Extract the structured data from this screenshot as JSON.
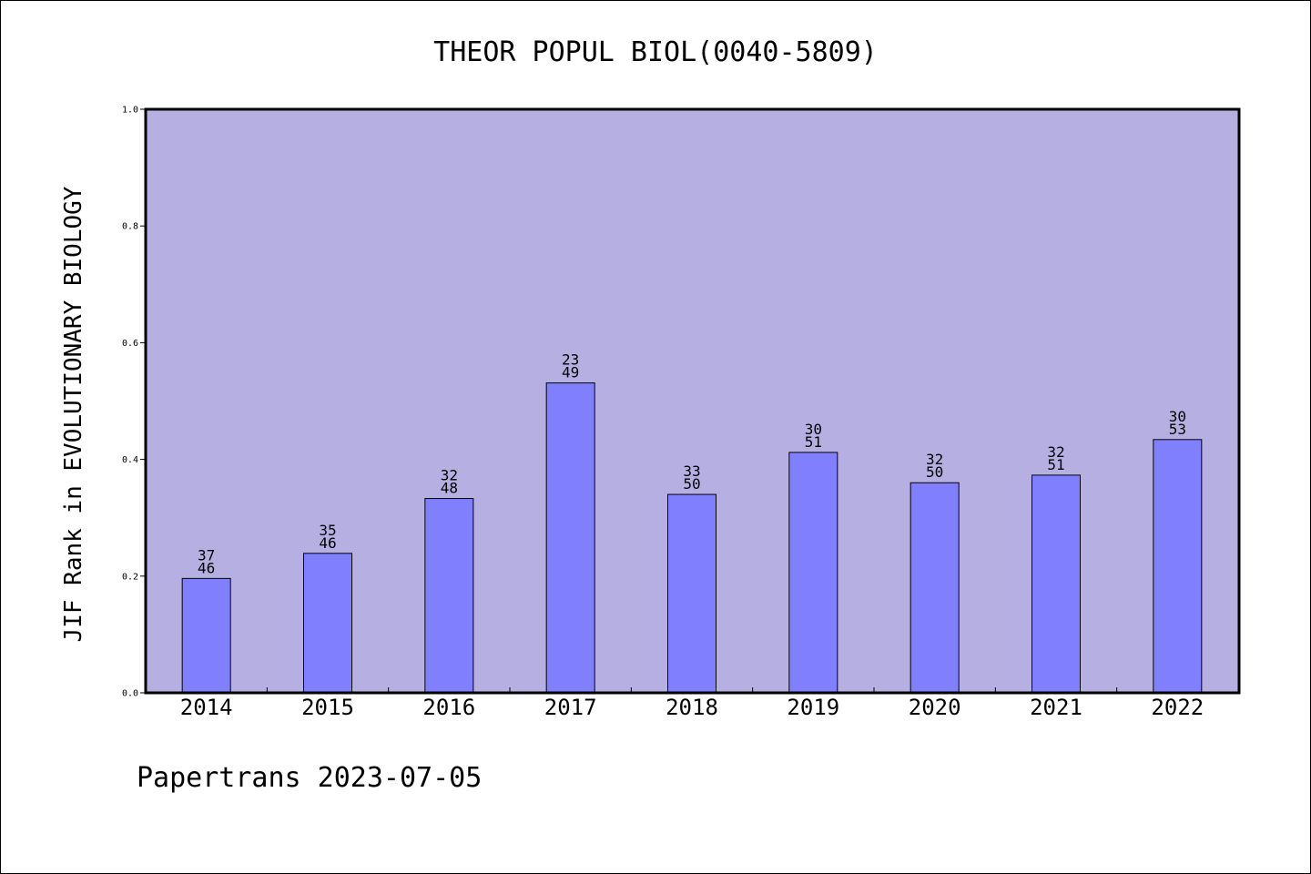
{
  "chart_data": {
    "type": "bar",
    "title": "THEOR POPUL BIOL(0040-5809)",
    "ylabel": "JIF Rank in EVOLUTIONARY BIOLOGY",
    "xlabel": "",
    "ylim": [
      0,
      1.0
    ],
    "yticks": [
      "0.0",
      "0.2",
      "0.4",
      "0.6",
      "0.8",
      "1.0"
    ],
    "categories": [
      "2014",
      "2015",
      "2016",
      "2017",
      "2018",
      "2019",
      "2020",
      "2021",
      "2022"
    ],
    "values": [
      0.196,
      0.239,
      0.333,
      0.531,
      0.34,
      0.412,
      0.36,
      0.373,
      0.434
    ],
    "labels": [
      [
        "37",
        "46"
      ],
      [
        "35",
        "46"
      ],
      [
        "32",
        "48"
      ],
      [
        "23",
        "49"
      ],
      [
        "33",
        "50"
      ],
      [
        "30",
        "51"
      ],
      [
        "32",
        "50"
      ],
      [
        "32",
        "51"
      ],
      [
        "30",
        "53"
      ]
    ],
    "colors": {
      "plot_background": "#b6b0e2",
      "bar_fill": "#8080ff",
      "bar_stroke": "#000000"
    },
    "grid": false,
    "legend": "none"
  },
  "footer": {
    "text": "Papertrans 2023-07-05"
  }
}
